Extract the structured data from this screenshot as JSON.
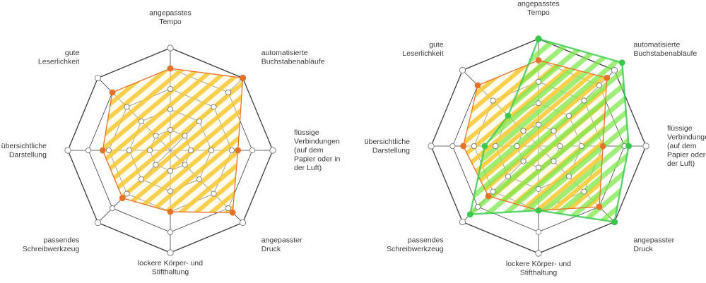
{
  "chart_data": [
    {
      "type": "radar",
      "title": "",
      "axes": [
        [
          "angepasstes",
          "Tempo"
        ],
        [
          "automatisierte",
          "Buchstabenabläufe"
        ],
        [
          "flüssige",
          "Verbindungen",
          "(auf dem",
          "Papier oder in",
          "der Luft)"
        ],
        [
          "angepasster",
          "Druck"
        ],
        [
          "lockere Körper- und",
          "Stifthaltung"
        ],
        [
          "passendes",
          "Schreibwerkzeug"
        ],
        [
          "übersichtliche",
          "Darstellung"
        ],
        [
          "gute",
          "Leserlichkeit"
        ]
      ],
      "rlim": [
        0,
        5
      ],
      "rings": 5,
      "series": [
        {
          "name": "",
          "color": "#e8712a",
          "fill": "#f7c832",
          "values": [
            4,
            5,
            3.3,
            4.3,
            3,
            3.3,
            3.3,
            4
          ]
        }
      ]
    },
    {
      "type": "radar",
      "title": "",
      "axes": [
        [
          "angepasstes",
          "Tempo"
        ],
        [
          "automatisierte",
          "Buchstabenabläufe"
        ],
        [
          "flüssige",
          "Verbindungen",
          "(auf dem",
          "Papier oder in",
          "der Luft)"
        ],
        [
          "angepasster",
          "Druck"
        ],
        [
          "lockere Körper- und",
          "Stifthaltung"
        ],
        [
          "passendes",
          "Schreibwerkzeug"
        ],
        [
          "übersichtliche",
          "Darstellung"
        ],
        [
          "gute",
          "Leserlichkeit"
        ]
      ],
      "rlim": [
        0,
        5
      ],
      "rings": 5,
      "series": [
        {
          "name": "",
          "color": "#e8712a",
          "fill": "#f7c832",
          "values": [
            4,
            4.5,
            3,
            4,
            3,
            3.3,
            3.5,
            4
          ]
        },
        {
          "name": "",
          "color": "#36c94a",
          "fill": "#7ee84d",
          "values": [
            5,
            5.5,
            4.2,
            5,
            3,
            4.5,
            2.5,
            2
          ]
        }
      ]
    }
  ]
}
